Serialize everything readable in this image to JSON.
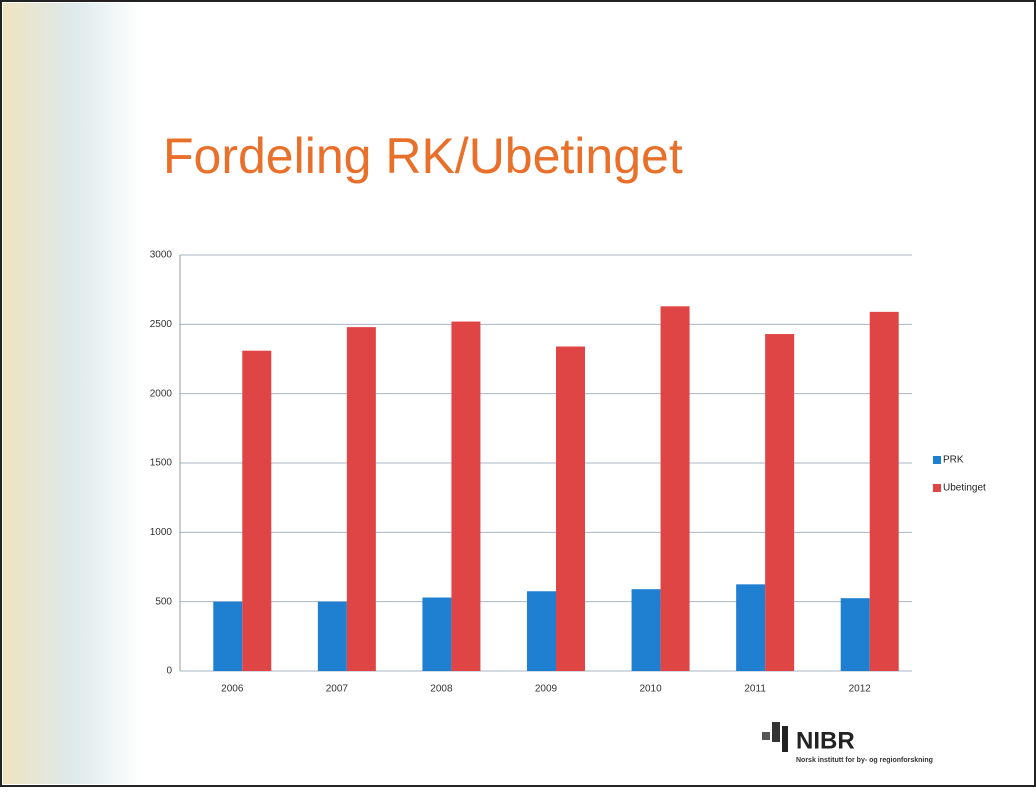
{
  "chart_data": {
    "type": "bar",
    "title": "Fordeling RK/Ubetinget",
    "categories": [
      "2006",
      "2007",
      "2008",
      "2009",
      "2010",
      "2011",
      "2012"
    ],
    "series": [
      {
        "name": "PRK",
        "color": "#1f7fd0",
        "values": [
          500,
          500,
          530,
          575,
          590,
          625,
          525
        ]
      },
      {
        "name": "Ubetinget",
        "color": "#e04545",
        "values": [
          2310,
          2480,
          2520,
          2340,
          2630,
          2430,
          2590
        ]
      }
    ],
    "ylim": [
      0,
      3000
    ],
    "yticks": [
      0,
      500,
      1000,
      1500,
      2000,
      2500,
      3000
    ],
    "grid": true,
    "legend": "right"
  },
  "logo": {
    "name": "NIBR",
    "tagline": "Norsk institutt for by- og regionforskning"
  }
}
